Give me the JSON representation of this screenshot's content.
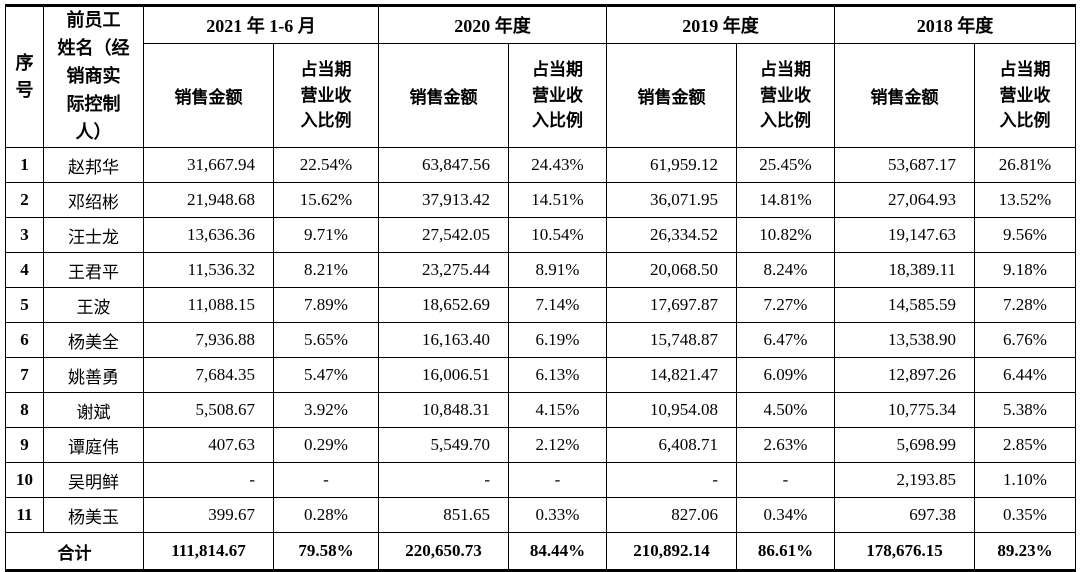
{
  "table": {
    "index_header": "序\n号",
    "name_header": "前员工\n姓名（经\n销商实\n际控制\n人）",
    "amount_header": "销售金额",
    "ratio_header": "占当期\n营业收\n入比例",
    "periods": [
      "2021 年 1-6 月",
      "2020 年度",
      "2019 年度",
      "2018 年度"
    ],
    "rows": [
      {
        "no": "1",
        "name": "赵邦华",
        "values": [
          "31,667.94",
          "22.54%",
          "63,847.56",
          "24.43%",
          "61,959.12",
          "25.45%",
          "53,687.17",
          "26.81%"
        ]
      },
      {
        "no": "2",
        "name": "邓绍彬",
        "values": [
          "21,948.68",
          "15.62%",
          "37,913.42",
          "14.51%",
          "36,071.95",
          "14.81%",
          "27,064.93",
          "13.52%"
        ]
      },
      {
        "no": "3",
        "name": "汪士龙",
        "values": [
          "13,636.36",
          "9.71%",
          "27,542.05",
          "10.54%",
          "26,334.52",
          "10.82%",
          "19,147.63",
          "9.56%"
        ]
      },
      {
        "no": "4",
        "name": "王君平",
        "values": [
          "11,536.32",
          "8.21%",
          "23,275.44",
          "8.91%",
          "20,068.50",
          "8.24%",
          "18,389.11",
          "9.18%"
        ]
      },
      {
        "no": "5",
        "name": "王波",
        "values": [
          "11,088.15",
          "7.89%",
          "18,652.69",
          "7.14%",
          "17,697.87",
          "7.27%",
          "14,585.59",
          "7.28%"
        ]
      },
      {
        "no": "6",
        "name": "杨美全",
        "values": [
          "7,936.88",
          "5.65%",
          "16,163.40",
          "6.19%",
          "15,748.87",
          "6.47%",
          "13,538.90",
          "6.76%"
        ]
      },
      {
        "no": "7",
        "name": "姚善勇",
        "values": [
          "7,684.35",
          "5.47%",
          "16,006.51",
          "6.13%",
          "14,821.47",
          "6.09%",
          "12,897.26",
          "6.44%"
        ]
      },
      {
        "no": "8",
        "name": "谢斌",
        "values": [
          "5,508.67",
          "3.92%",
          "10,848.31",
          "4.15%",
          "10,954.08",
          "4.50%",
          "10,775.34",
          "5.38%"
        ]
      },
      {
        "no": "9",
        "name": "谭庭伟",
        "values": [
          "407.63",
          "0.29%",
          "5,549.70",
          "2.12%",
          "6,408.71",
          "2.63%",
          "5,698.99",
          "2.85%"
        ]
      },
      {
        "no": "10",
        "name": "吴明鲜",
        "values": [
          "-",
          "-",
          "-",
          "-",
          "-",
          "-",
          "2,193.85",
          "1.10%"
        ]
      },
      {
        "no": "11",
        "name": "杨美玉",
        "values": [
          "399.67",
          "0.28%",
          "851.65",
          "0.33%",
          "827.06",
          "0.34%",
          "697.38",
          "0.35%"
        ]
      }
    ],
    "total_label": "合计",
    "total_values": [
      "111,814.67",
      "79.58%",
      "220,650.73",
      "84.44%",
      "210,892.14",
      "86.61%",
      "178,676.15",
      "89.23%"
    ]
  }
}
